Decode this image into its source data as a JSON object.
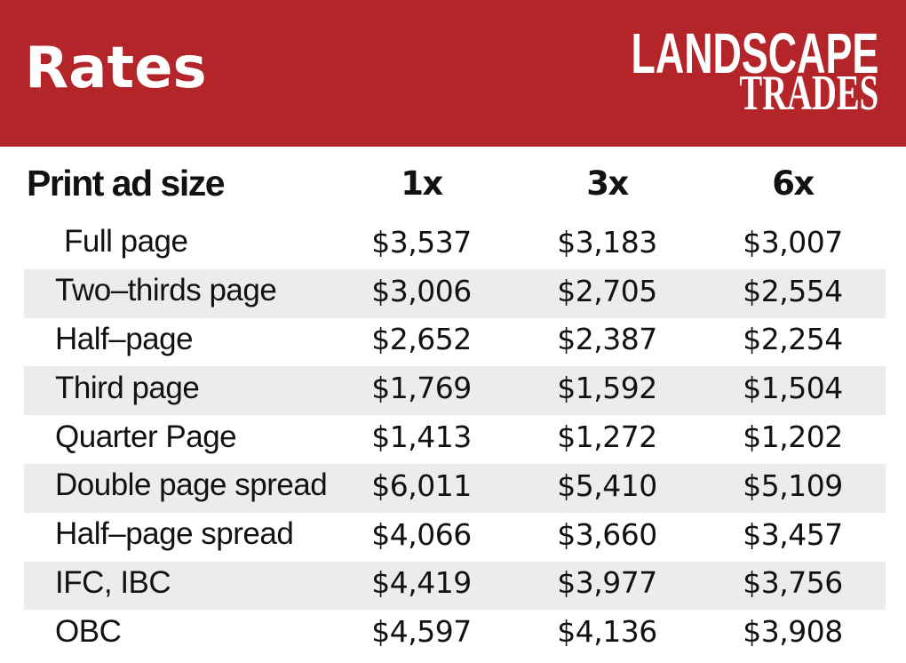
{
  "banner": {
    "title": "Rates",
    "logo_line1": "LANDSCAPE",
    "logo_line2": "TRADES",
    "bg_color": "#b4252a"
  },
  "table": {
    "stripe_color": "#ececec",
    "header": {
      "label": "Print ad size",
      "cols": [
        "1x",
        "3x",
        "6x"
      ]
    },
    "rows": [
      {
        "label": "Full page",
        "values": [
          "$3,537",
          "$3,183",
          "$3,007"
        ]
      },
      {
        "label": "Two–thirds page",
        "values": [
          "$3,006",
          "$2,705",
          "$2,554"
        ]
      },
      {
        "label": "Half–page",
        "values": [
          "$2,652",
          "$2,387",
          "$2,254"
        ]
      },
      {
        "label": "Third page",
        "values": [
          "$1,769",
          "$1,592",
          "$1,504"
        ]
      },
      {
        "label": "Quarter Page",
        "values": [
          "$1,413",
          "$1,272",
          "$1,202"
        ]
      },
      {
        "label": "Double page spread",
        "values": [
          "$6,011",
          "$5,410",
          "$5,109"
        ]
      },
      {
        "label": "Half–page spread",
        "values": [
          "$4,066",
          "$3,660",
          "$3,457"
        ]
      },
      {
        "label": "IFC, IBC",
        "values": [
          "$4,419",
          "$3,977",
          "$3,756"
        ]
      },
      {
        "label": "OBC",
        "values": [
          "$4,597",
          "$4,136",
          "$3,908"
        ]
      }
    ]
  }
}
